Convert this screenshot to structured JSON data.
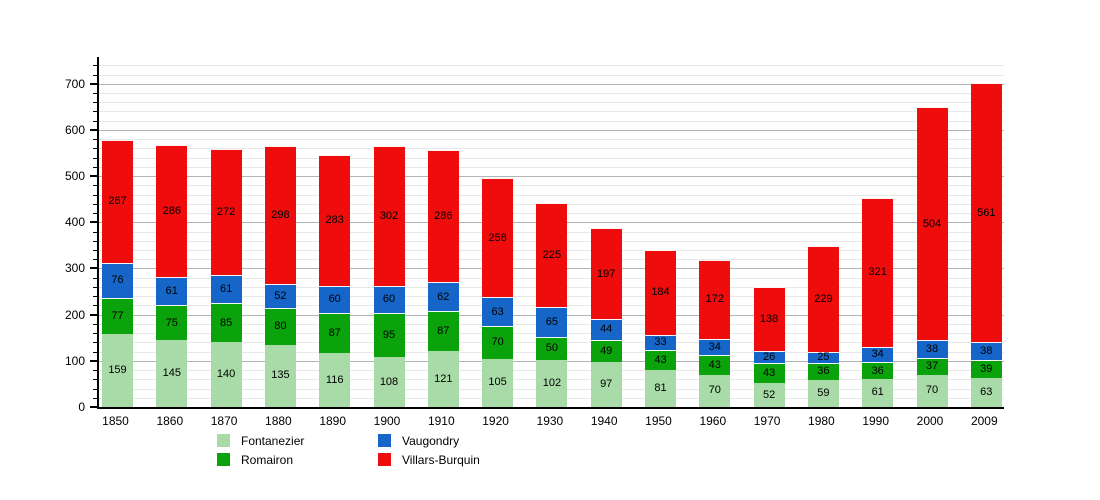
{
  "chart_data": {
    "type": "bar",
    "stacked": true,
    "title": "",
    "xlabel": "",
    "ylabel": "",
    "categories": [
      "1850",
      "1860",
      "1870",
      "1880",
      "1890",
      "1900",
      "1910",
      "1920",
      "1930",
      "1940",
      "1950",
      "1960",
      "1970",
      "1980",
      "1990",
      "2000",
      "2009"
    ],
    "series": [
      {
        "name": "Fontanezier",
        "color": "#a8dba8",
        "values": [
          159,
          145,
          140,
          135,
          116,
          108,
          121,
          105,
          102,
          97,
          81,
          70,
          52,
          59,
          61,
          70,
          63
        ]
      },
      {
        "name": "Romairon",
        "color": "#0ba30b",
        "values": [
          77,
          75,
          85,
          80,
          87,
          95,
          87,
          70,
          50,
          49,
          43,
          43,
          43,
          36,
          36,
          37,
          39
        ]
      },
      {
        "name": "Vaugondry",
        "color": "#1566c8",
        "values": [
          76,
          61,
          61,
          52,
          60,
          60,
          62,
          63,
          65,
          44,
          33,
          34,
          26,
          25,
          34,
          38,
          38
        ]
      },
      {
        "name": "Villars-Burquin",
        "color": "#ee0c0c",
        "values": [
          267,
          286,
          272,
          298,
          283,
          302,
          286,
          258,
          225,
          197,
          184,
          172,
          138,
          229,
          321,
          504,
          561
        ]
      }
    ],
    "ylim": [
      0,
      758
    ],
    "yticks_major": [
      0,
      100,
      200,
      300,
      400,
      500,
      600,
      700
    ],
    "ytick_minor_step": 20,
    "ytick_minor_max": 740,
    "grid": true,
    "gridline_major_color": "#b4b4b4",
    "gridline_minor_color": "#e8e8e8",
    "legend_position": "bottom",
    "legend_order": [
      "Fontanezier",
      "Romairon",
      "Vaugondry",
      "Villars-Burquin"
    ]
  }
}
